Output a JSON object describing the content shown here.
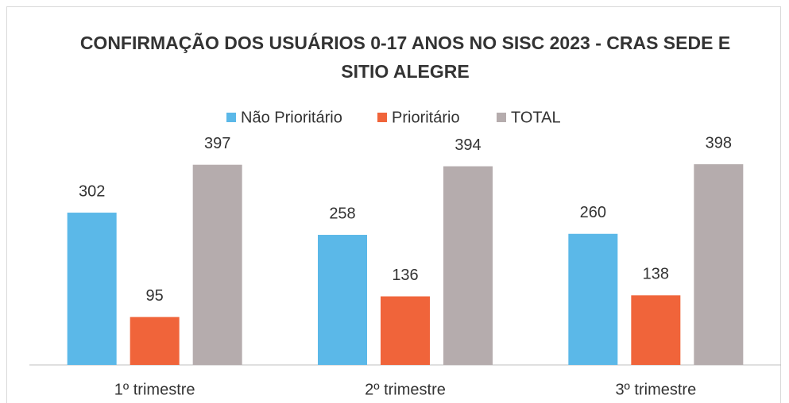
{
  "chart_data": {
    "type": "bar",
    "title": "CONFIRMAÇÃO DOS USUÁRIOS 0-17 ANOS NO SISC 2023 - CRAS SEDE E SITIO ALEGRE",
    "categories": [
      "1º trimestre",
      "2º  trimestre",
      "3º trimestre"
    ],
    "series": [
      {
        "name": "Não Prioritário",
        "color": "#5bb8e8",
        "values": [
          302,
          258,
          260
        ]
      },
      {
        "name": "Prioritário",
        "color": "#f0643a",
        "values": [
          95,
          136,
          138
        ]
      },
      {
        "name": "TOTAL",
        "color": "#b5acad",
        "values": [
          397,
          394,
          398
        ]
      }
    ],
    "ylim": [
      0,
      450
    ],
    "legend": "top"
  }
}
